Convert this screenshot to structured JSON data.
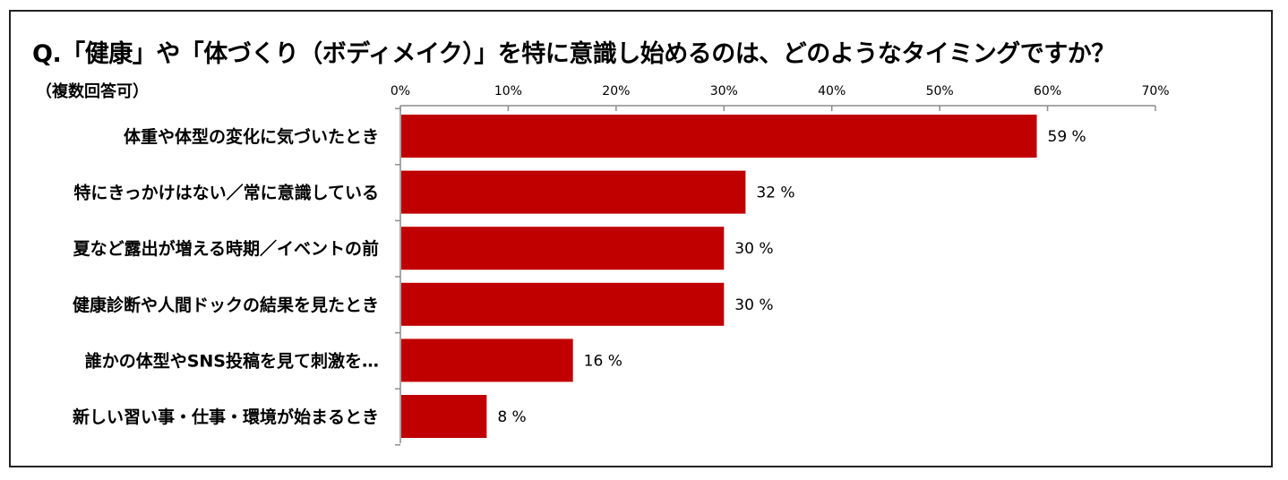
{
  "title": "Q.「健康」や「体づくり（ボディメイク）」を特に意識し始めるのは、どのようなタイミングですか？",
  "subtitle": "（複数回答可）",
  "colors": {
    "bar": "#c00000",
    "axis": "#8c8c8c",
    "text": "#000000"
  },
  "chart_data": {
    "type": "bar",
    "orientation": "horizontal",
    "categories": [
      "体重や体型の変化に気づいたとき",
      "特にきっかけはない／常に意識している",
      "夏など露出が増える時期／イベントの前",
      "健康診断や人間ドックの結果を見たとき",
      "誰かの体型やSNS投稿を見て刺激を…",
      "新しい習い事・仕事・環境が始まるとき"
    ],
    "values": [
      59,
      32,
      30,
      30,
      16,
      8
    ],
    "data_labels": [
      "59 %",
      "32 %",
      "30 %",
      "30 %",
      "16 %",
      "8 %"
    ],
    "xlim": [
      0,
      70
    ],
    "xticks": [
      0,
      10,
      20,
      30,
      40,
      50,
      60,
      70
    ],
    "xtick_labels": [
      "0%",
      "10%",
      "20%",
      "30%",
      "40%",
      "50%",
      "60%",
      "70%"
    ],
    "axis_position": "top",
    "grid": false,
    "legend": "none"
  }
}
